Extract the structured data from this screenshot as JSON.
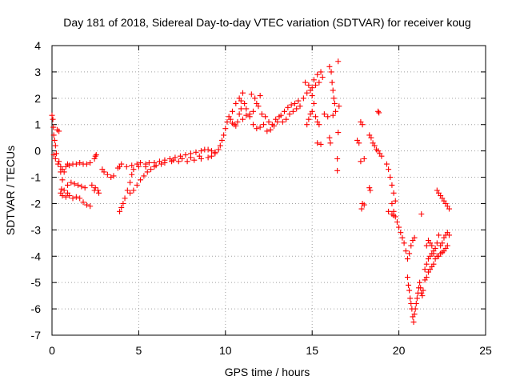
{
  "chart_data": {
    "type": "scatter",
    "title": "Day 181 of 2018, Sidereal Day-to-day VTEC variation (SDTVAR) for receiver koug",
    "xlabel": "GPS time / hours",
    "ylabel": "SDTVAR / TECUs",
    "xlim": [
      0,
      25
    ],
    "ylim": [
      -7,
      4
    ],
    "x_ticks": [
      "0",
      "5",
      "10",
      "15",
      "20",
      "25"
    ],
    "y_ticks": [
      "4",
      "3",
      "2",
      "1",
      "0",
      "-1",
      "-2",
      "-3",
      "-4",
      "-5",
      "-6",
      "-7"
    ],
    "grid": true,
    "marker": "+",
    "marker_color": "#ff0000",
    "series": [
      {
        "points": [
          [
            0.0,
            1.35
          ],
          [
            0.05,
            1.2
          ],
          [
            0.08,
            0.9
          ],
          [
            0.1,
            0.6
          ],
          [
            0.15,
            0.4
          ],
          [
            0.2,
            0.2
          ],
          [
            0.25,
            -0.1
          ],
          [
            0.3,
            0.8
          ],
          [
            0.4,
            0.75
          ],
          [
            0.1,
            -0.15
          ],
          [
            0.2,
            -0.3
          ],
          [
            0.35,
            -0.5
          ],
          [
            0.5,
            -0.8
          ],
          [
            0.6,
            -1.1
          ],
          [
            0.7,
            -1.5
          ],
          [
            0.8,
            -1.75
          ],
          [
            0.9,
            -1.6
          ],
          [
            1.0,
            -1.7
          ],
          [
            1.2,
            -1.8
          ],
          [
            1.4,
            -1.75
          ],
          [
            0.5,
            -1.6
          ],
          [
            0.55,
            -1.45
          ],
          [
            0.6,
            -1.7
          ],
          [
            0.9,
            -1.3
          ],
          [
            1.1,
            -1.2
          ],
          [
            1.3,
            -1.25
          ],
          [
            1.5,
            -1.3
          ],
          [
            1.7,
            -1.35
          ],
          [
            1.9,
            -1.4
          ],
          [
            1.6,
            -1.8
          ],
          [
            1.8,
            -1.95
          ],
          [
            2.0,
            -2.05
          ],
          [
            2.2,
            -2.1
          ],
          [
            0.4,
            -0.4
          ],
          [
            0.5,
            -0.6
          ],
          [
            0.6,
            -0.7
          ],
          [
            0.7,
            -0.8
          ],
          [
            0.8,
            -0.6
          ],
          [
            0.9,
            -0.5
          ],
          [
            1.0,
            -0.55
          ],
          [
            1.2,
            -0.5
          ],
          [
            1.4,
            -0.5
          ],
          [
            1.6,
            -0.45
          ],
          [
            1.8,
            -0.5
          ],
          [
            2.0,
            -0.5
          ],
          [
            2.2,
            -0.45
          ],
          [
            2.45,
            -0.3
          ],
          [
            2.5,
            -0.2
          ],
          [
            2.55,
            -0.15
          ],
          [
            2.3,
            -1.3
          ],
          [
            2.45,
            -1.5
          ],
          [
            2.5,
            -1.4
          ],
          [
            2.65,
            -1.5
          ],
          [
            2.7,
            -1.6
          ],
          [
            2.9,
            -0.7
          ],
          [
            3.0,
            -0.8
          ],
          [
            3.2,
            -0.9
          ],
          [
            3.4,
            -1.0
          ],
          [
            3.55,
            -0.95
          ],
          [
            3.8,
            -0.65
          ],
          [
            3.9,
            -0.6
          ],
          [
            4.0,
            -0.5
          ],
          [
            3.9,
            -2.3
          ],
          [
            4.0,
            -2.15
          ],
          [
            4.1,
            -2.0
          ],
          [
            4.2,
            -1.8
          ],
          [
            4.35,
            -1.5
          ],
          [
            4.5,
            -1.2
          ],
          [
            4.6,
            -0.9
          ],
          [
            4.7,
            -0.7
          ],
          [
            4.5,
            -1.6
          ],
          [
            4.7,
            -1.5
          ],
          [
            4.9,
            -1.3
          ],
          [
            5.1,
            -1.1
          ],
          [
            5.3,
            -0.95
          ],
          [
            5.5,
            -0.8
          ],
          [
            5.7,
            -0.7
          ],
          [
            5.9,
            -0.6
          ],
          [
            4.3,
            -0.6
          ],
          [
            4.6,
            -0.55
          ],
          [
            4.9,
            -0.5
          ],
          [
            5.1,
            -0.45
          ],
          [
            5.4,
            -0.5
          ],
          [
            5.6,
            -0.45
          ],
          [
            5.9,
            -0.45
          ],
          [
            6.2,
            -0.4
          ],
          [
            6.5,
            -0.35
          ],
          [
            6.8,
            -0.3
          ],
          [
            7.1,
            -0.25
          ],
          [
            7.4,
            -0.2
          ],
          [
            7.7,
            -0.15
          ],
          [
            8.0,
            -0.1
          ],
          [
            8.3,
            -0.05
          ],
          [
            8.6,
            0.0
          ],
          [
            5.0,
            -0.6
          ],
          [
            5.4,
            -0.6
          ],
          [
            6.0,
            -0.55
          ],
          [
            6.5,
            -0.45
          ],
          [
            7.0,
            -0.35
          ],
          [
            7.5,
            -0.3
          ],
          [
            8.0,
            -0.25
          ],
          [
            8.5,
            -0.2
          ],
          [
            6.3,
            -0.5
          ],
          [
            6.9,
            -0.4
          ],
          [
            7.3,
            -0.4
          ],
          [
            7.8,
            -0.4
          ],
          [
            8.2,
            -0.35
          ],
          [
            8.6,
            -0.3
          ],
          [
            9.0,
            -0.25
          ],
          [
            9.2,
            -0.2
          ],
          [
            9.4,
            -0.1
          ],
          [
            8.8,
            0.05
          ],
          [
            9.0,
            0.05
          ],
          [
            9.2,
            0.0
          ],
          [
            9.4,
            -0.05
          ],
          [
            9.6,
            0.05
          ],
          [
            9.7,
            0.2
          ],
          [
            9.8,
            0.4
          ],
          [
            9.9,
            0.6
          ],
          [
            10.0,
            0.85
          ],
          [
            10.1,
            1.1
          ],
          [
            10.2,
            1.3
          ],
          [
            10.3,
            1.2
          ],
          [
            10.4,
            1.05
          ],
          [
            10.5,
            1.0
          ],
          [
            10.6,
            0.95
          ],
          [
            10.7,
            1.1
          ],
          [
            10.8,
            1.4
          ],
          [
            10.9,
            1.6
          ],
          [
            10.4,
            1.5
          ],
          [
            10.6,
            1.8
          ],
          [
            10.8,
            2.0
          ],
          [
            11.0,
            2.2
          ],
          [
            10.9,
            1.9
          ],
          [
            11.1,
            1.8
          ],
          [
            11.2,
            1.6
          ],
          [
            11.4,
            1.3
          ],
          [
            11.6,
            1.0
          ],
          [
            11.8,
            0.85
          ],
          [
            12.0,
            0.9
          ],
          [
            12.2,
            1.0
          ],
          [
            11.0,
            1.2
          ],
          [
            11.2,
            1.35
          ],
          [
            11.4,
            1.4
          ],
          [
            11.6,
            1.5
          ],
          [
            11.8,
            1.8
          ],
          [
            12.0,
            2.1
          ],
          [
            11.5,
            2.15
          ],
          [
            11.7,
            2.0
          ],
          [
            11.9,
            1.7
          ],
          [
            12.1,
            1.4
          ],
          [
            12.3,
            1.3
          ],
          [
            12.5,
            1.1
          ],
          [
            12.7,
            1.0
          ],
          [
            12.9,
            1.2
          ],
          [
            13.1,
            1.3
          ],
          [
            12.4,
            0.75
          ],
          [
            12.6,
            0.8
          ],
          [
            12.8,
            0.95
          ],
          [
            13.0,
            1.1
          ],
          [
            13.2,
            1.35
          ],
          [
            13.4,
            1.5
          ],
          [
            13.6,
            1.65
          ],
          [
            13.8,
            1.75
          ],
          [
            14.0,
            1.8
          ],
          [
            14.2,
            1.9
          ],
          [
            13.3,
            1.1
          ],
          [
            13.5,
            1.2
          ],
          [
            13.7,
            1.4
          ],
          [
            13.9,
            1.5
          ],
          [
            14.1,
            1.6
          ],
          [
            14.3,
            1.7
          ],
          [
            14.5,
            2.0
          ],
          [
            14.7,
            2.2
          ],
          [
            14.9,
            2.3
          ],
          [
            14.6,
            2.6
          ],
          [
            14.8,
            2.5
          ],
          [
            15.0,
            2.4
          ],
          [
            15.1,
            2.7
          ],
          [
            15.3,
            2.9
          ],
          [
            15.5,
            3.0
          ],
          [
            15.2,
            2.5
          ],
          [
            15.4,
            2.6
          ],
          [
            15.6,
            2.8
          ],
          [
            15.0,
            2.1
          ],
          [
            15.1,
            1.8
          ],
          [
            15.2,
            1.3
          ],
          [
            15.3,
            1.1
          ],
          [
            15.4,
            1.0
          ],
          [
            15.0,
            1.5
          ],
          [
            14.9,
            1.4
          ],
          [
            14.8,
            1.2
          ],
          [
            14.7,
            1.0
          ],
          [
            15.3,
            0.3
          ],
          [
            15.5,
            0.25
          ],
          [
            15.7,
            1.4
          ],
          [
            15.9,
            1.3
          ],
          [
            16.0,
            3.2
          ],
          [
            16.1,
            3.0
          ],
          [
            16.15,
            2.6
          ],
          [
            16.2,
            2.3
          ],
          [
            16.25,
            2.0
          ],
          [
            16.3,
            1.8
          ],
          [
            16.35,
            1.5
          ],
          [
            16.2,
            1.35
          ],
          [
            16.0,
            0.5
          ],
          [
            16.05,
            0.3
          ],
          [
            16.5,
            3.4
          ],
          [
            16.55,
            1.7
          ],
          [
            16.5,
            0.7
          ],
          [
            16.45,
            -0.3
          ],
          [
            16.45,
            -0.75
          ],
          [
            17.8,
            1.1
          ],
          [
            17.9,
            1.0
          ],
          [
            18.0,
            -0.3
          ],
          [
            17.8,
            -0.4
          ],
          [
            17.6,
            0.4
          ],
          [
            17.7,
            0.3
          ],
          [
            18.3,
            0.6
          ],
          [
            18.4,
            0.5
          ],
          [
            18.5,
            0.3
          ],
          [
            18.6,
            0.2
          ],
          [
            18.7,
            0.05
          ],
          [
            18.8,
            0.0
          ],
          [
            18.8,
            1.5
          ],
          [
            18.85,
            1.45
          ],
          [
            18.9,
            -0.1
          ],
          [
            19.0,
            -0.2
          ],
          [
            18.3,
            -1.4
          ],
          [
            18.35,
            -1.5
          ],
          [
            17.9,
            -2.0
          ],
          [
            17.85,
            -2.2
          ],
          [
            18.0,
            -2.05
          ],
          [
            19.3,
            -0.5
          ],
          [
            19.4,
            -0.7
          ],
          [
            19.5,
            -1.0
          ],
          [
            19.6,
            -1.3
          ],
          [
            19.7,
            -1.6
          ],
          [
            19.8,
            -1.9
          ],
          [
            19.6,
            -2.0
          ],
          [
            19.7,
            -2.3
          ],
          [
            19.8,
            -2.5
          ],
          [
            19.9,
            -2.7
          ],
          [
            20.0,
            -2.9
          ],
          [
            20.1,
            -3.1
          ],
          [
            20.2,
            -3.3
          ],
          [
            20.3,
            -3.5
          ],
          [
            20.4,
            -3.8
          ],
          [
            20.5,
            -4.1
          ],
          [
            19.4,
            -2.3
          ],
          [
            19.6,
            -2.4
          ],
          [
            19.7,
            -2.45
          ],
          [
            20.5,
            -4.8
          ],
          [
            20.55,
            -5.1
          ],
          [
            20.6,
            -5.3
          ],
          [
            20.65,
            -5.6
          ],
          [
            20.7,
            -5.8
          ],
          [
            20.75,
            -6.0
          ],
          [
            20.8,
            -6.3
          ],
          [
            20.85,
            -6.5
          ],
          [
            20.9,
            -6.2
          ],
          [
            20.95,
            -6.0
          ],
          [
            21.0,
            -5.8
          ],
          [
            21.05,
            -5.6
          ],
          [
            21.1,
            -5.4
          ],
          [
            21.15,
            -5.2
          ],
          [
            21.2,
            -5.0
          ],
          [
            21.25,
            -5.2
          ],
          [
            21.3,
            -5.4
          ],
          [
            21.35,
            -5.5
          ],
          [
            21.4,
            -5.3
          ],
          [
            20.6,
            -3.9
          ],
          [
            20.7,
            -3.6
          ],
          [
            20.8,
            -3.4
          ],
          [
            20.9,
            -3.3
          ],
          [
            21.3,
            -2.4
          ],
          [
            21.5,
            -4.5
          ],
          [
            21.6,
            -4.3
          ],
          [
            21.7,
            -4.1
          ],
          [
            21.8,
            -4.0
          ],
          [
            21.9,
            -3.9
          ],
          [
            22.0,
            -3.8
          ],
          [
            21.6,
            -3.6
          ],
          [
            21.7,
            -3.4
          ],
          [
            21.8,
            -3.5
          ],
          [
            21.9,
            -3.6
          ],
          [
            22.0,
            -3.9
          ],
          [
            22.1,
            -3.7
          ],
          [
            22.2,
            -3.5
          ],
          [
            22.3,
            -3.2
          ],
          [
            21.5,
            -4.9
          ],
          [
            21.6,
            -4.8
          ],
          [
            21.7,
            -4.6
          ],
          [
            21.8,
            -4.5
          ],
          [
            21.9,
            -4.4
          ],
          [
            22.0,
            -4.3
          ],
          [
            22.1,
            -4.1
          ],
          [
            22.2,
            -4.0
          ],
          [
            22.3,
            -4.0
          ],
          [
            22.4,
            -3.9
          ],
          [
            22.5,
            -3.85
          ],
          [
            22.6,
            -3.8
          ],
          [
            22.7,
            -3.7
          ],
          [
            22.8,
            -3.6
          ],
          [
            22.6,
            -3.3
          ],
          [
            22.7,
            -3.2
          ],
          [
            22.8,
            -3.1
          ],
          [
            22.9,
            -3.2
          ],
          [
            22.4,
            -3.6
          ],
          [
            22.5,
            -3.5
          ],
          [
            22.2,
            -1.5
          ],
          [
            22.3,
            -1.6
          ],
          [
            22.4,
            -1.7
          ],
          [
            22.5,
            -1.8
          ],
          [
            22.6,
            -1.9
          ],
          [
            22.7,
            -2.0
          ],
          [
            22.8,
            -2.1
          ],
          [
            22.9,
            -2.2
          ]
        ]
      }
    ]
  }
}
